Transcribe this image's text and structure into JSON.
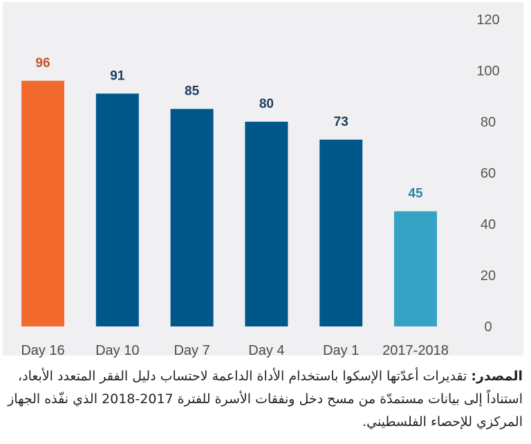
{
  "chart_data": {
    "type": "bar",
    "categories": [
      "Day 16",
      "Day 10",
      "Day 7",
      "Day 4",
      "Day 1",
      "2017-2018"
    ],
    "values": [
      96,
      91,
      85,
      80,
      73,
      45
    ],
    "data_labels": [
      "96",
      "91",
      "85",
      "80",
      "73",
      "45"
    ],
    "bar_colors": [
      "#f26a2e",
      "#00578a",
      "#00578a",
      "#00578a",
      "#00578a",
      "#36a3c4"
    ],
    "label_colors": [
      "#c9532a",
      "#1d3e5c",
      "#1d3e5c",
      "#1d3e5c",
      "#1d3e5c",
      "#2a86a8"
    ],
    "ylim": [
      0,
      120
    ],
    "yticks": [
      "0",
      "20",
      "40",
      "60",
      "80",
      "100",
      "120"
    ],
    "y_axis_position": "right",
    "grid": false,
    "background": "#f0f0f2"
  },
  "source": {
    "label": "المصدر:",
    "text": "تقديرات أعدّتها الإسكوا باستخدام الأداة الداعمة لاحتساب دليل الفقر المتعدد الأبعاد، استناداً إلى بيانات مستمدّة من مسح دخل ونفقات الأسرة للفترة 2017-2018 الذي نفّذه الجهاز المركزي للإحصاء الفلسطيني."
  }
}
